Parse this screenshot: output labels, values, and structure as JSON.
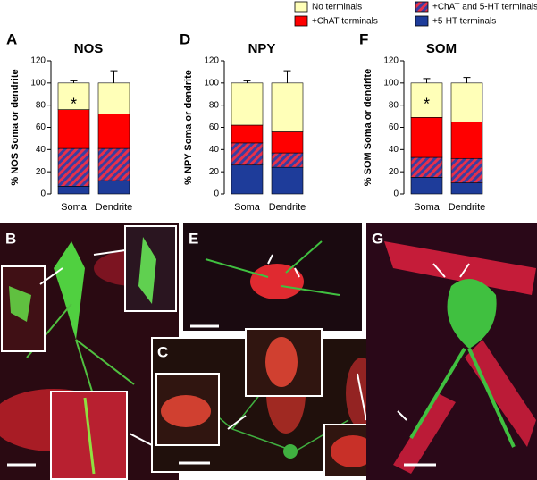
{
  "chart_data": [
    {
      "type": "stacked-bar",
      "panel": "A",
      "title": "NOS",
      "y_label": "% NOS Soma or dendrite",
      "annotation": "*",
      "categories": [
        "Soma",
        "Dendrite"
      ],
      "ylim": [
        0,
        120
      ],
      "yticks": [
        0,
        20,
        40,
        60,
        80,
        100,
        120
      ],
      "series": [
        {
          "name": "+5-HT terminals",
          "color": "#1e3c9a",
          "values": [
            7,
            12
          ],
          "errors": [
            1,
            1
          ]
        },
        {
          "name": "+ChAT and 5-HT terminals",
          "color": "#e8304a",
          "hatch": "#3a3ea0",
          "values": [
            34,
            29
          ],
          "errors": [
            1,
            5
          ]
        },
        {
          "name": "+ChAT terminals",
          "color": "#ff0000",
          "values": [
            35,
            31
          ],
          "errors": [
            1,
            4
          ]
        },
        {
          "name": "No terminals",
          "color": "#ffffb8",
          "values": [
            24,
            28
          ],
          "errors": [
            2,
            11
          ]
        }
      ]
    },
    {
      "type": "stacked-bar",
      "panel": "D",
      "title": "NPY",
      "y_label": "% NPY Soma or dendrite",
      "categories": [
        "Soma",
        "Dendrite"
      ],
      "ylim": [
        0,
        120
      ],
      "yticks": [
        0,
        20,
        40,
        60,
        80,
        100,
        120
      ],
      "series": [
        {
          "color": "#1e3c9a",
          "values": [
            26,
            24
          ],
          "errors": [
            1,
            1
          ]
        },
        {
          "color": "#e8304a",
          "hatch": "#3a3ea0",
          "values": [
            20,
            13
          ],
          "errors": [
            1,
            5
          ]
        },
        {
          "color": "#ff0000",
          "values": [
            16,
            19
          ],
          "errors": [
            2,
            7
          ]
        },
        {
          "color": "#ffffb8",
          "values": [
            38,
            44
          ],
          "errors": [
            2,
            11
          ]
        }
      ]
    },
    {
      "type": "stacked-bar",
      "panel": "F",
      "title": "SOM",
      "y_label": "% SOM Soma or dendrite",
      "annotation": "*",
      "categories": [
        "Soma",
        "Dendrite"
      ],
      "ylim": [
        0,
        120
      ],
      "yticks": [
        0,
        20,
        40,
        60,
        80,
        100,
        120
      ],
      "series": [
        {
          "color": "#1e3c9a",
          "values": [
            15,
            10
          ],
          "errors": [
            1,
            1
          ]
        },
        {
          "color": "#e8304a",
          "hatch": "#3a3ea0",
          "values": [
            18,
            22
          ],
          "errors": [
            1,
            4
          ]
        },
        {
          "color": "#ff0000",
          "values": [
            36,
            33
          ],
          "errors": [
            9,
            5
          ]
        },
        {
          "color": "#ffffb8",
          "values": [
            31,
            35
          ],
          "errors": [
            4,
            5
          ]
        }
      ]
    }
  ],
  "image_panels": [
    "B",
    "E",
    "C",
    "G"
  ]
}
